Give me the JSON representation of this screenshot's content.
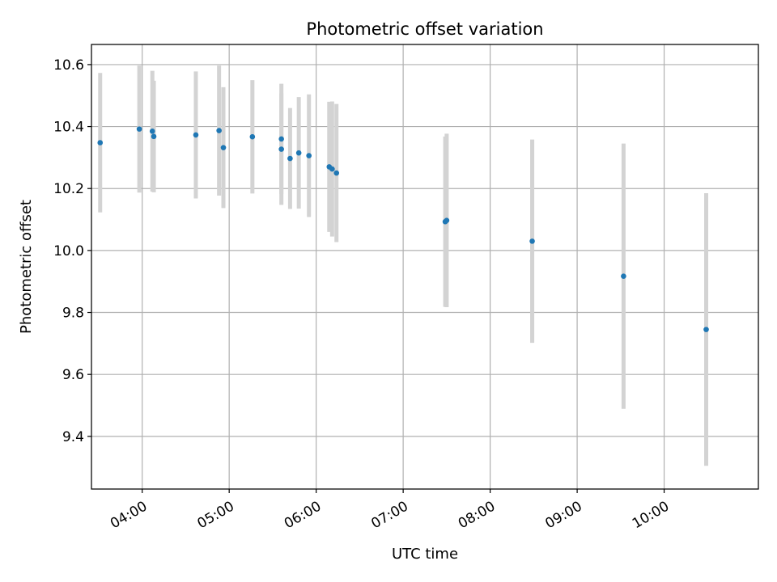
{
  "chart_data": {
    "type": "scatter",
    "title": "Photometric offset variation",
    "xlabel": "UTC time",
    "ylabel": "Photometric offset",
    "x_ticks": [
      "04:00",
      "05:00",
      "06:00",
      "07:00",
      "08:00",
      "09:00",
      "10:00"
    ],
    "y_ticks": [
      "9.4",
      "9.6",
      "9.8",
      "10.0",
      "10.2",
      "10.4",
      "10.6"
    ],
    "xlim": [
      "03:25",
      "11:05"
    ],
    "ylim": [
      9.23,
      10.665
    ],
    "grid": true,
    "legend": "none",
    "colors": {
      "point": "#1f77b4",
      "errorbar": "#d3d3d3",
      "grid": "#b0b0b0"
    },
    "series": [
      {
        "points": [
          {
            "x": "03:31",
            "y": 10.348,
            "err": 0.225
          },
          {
            "x": "03:58",
            "y": 10.392,
            "err": 0.205
          },
          {
            "x": "04:07",
            "y": 10.385,
            "err": 0.195
          },
          {
            "x": "04:08",
            "y": 10.368,
            "err": 0.18
          },
          {
            "x": "04:37",
            "y": 10.373,
            "err": 0.205
          },
          {
            "x": "04:53",
            "y": 10.387,
            "err": 0.21
          },
          {
            "x": "04:56",
            "y": 10.332,
            "err": 0.195
          },
          {
            "x": "05:16",
            "y": 10.367,
            "err": 0.183
          },
          {
            "x": "05:36",
            "y": 10.36,
            "err": 0.178
          },
          {
            "x": "05:36",
            "y": 10.327,
            "err": 0.18
          },
          {
            "x": "05:42",
            "y": 10.297,
            "err": 0.163
          },
          {
            "x": "05:48",
            "y": 10.315,
            "err": 0.18
          },
          {
            "x": "05:55",
            "y": 10.306,
            "err": 0.198
          },
          {
            "x": "06:09",
            "y": 10.27,
            "err": 0.21
          },
          {
            "x": "06:11",
            "y": 10.263,
            "err": 0.218
          },
          {
            "x": "06:14",
            "y": 10.25,
            "err": 0.223
          },
          {
            "x": "07:29",
            "y": 10.093,
            "err": 0.275
          },
          {
            "x": "07:30",
            "y": 10.097,
            "err": 0.28
          },
          {
            "x": "08:29",
            "y": 10.03,
            "err": 0.328
          },
          {
            "x": "09:32",
            "y": 9.917,
            "err": 0.428
          },
          {
            "x": "10:29",
            "y": 9.745,
            "err": 0.44
          }
        ]
      }
    ]
  }
}
